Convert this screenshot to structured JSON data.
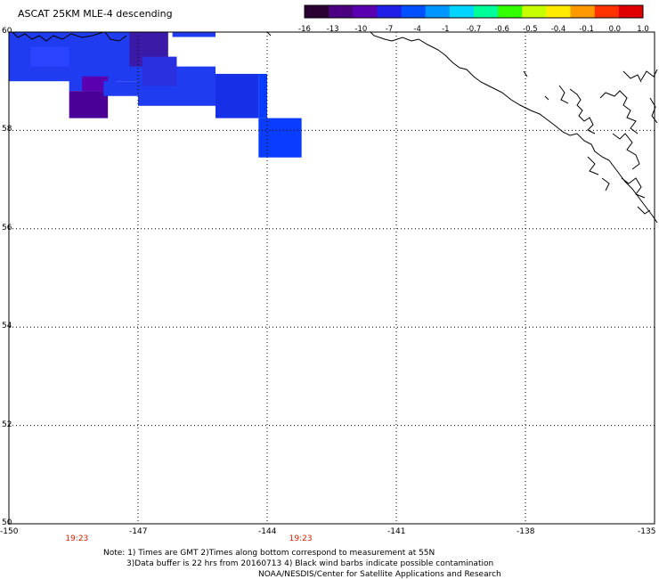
{
  "title": "ASCAT 25KM MLE-4 descending",
  "colorbar": {
    "labels": [
      "-16",
      "-13",
      "-10",
      "-7",
      "-4",
      "-1",
      "-0.7",
      "-0.6",
      "-0.5",
      "-0.4",
      "-0.1",
      "0.0",
      "1.0"
    ],
    "colors": [
      "#2a0033",
      "#4b0082",
      "#5a00b0",
      "#1f1fe8",
      "#0050ff",
      "#0096ff",
      "#00d4ff",
      "#00ff99",
      "#33ff00",
      "#c8ff00",
      "#ffea00",
      "#ff9900",
      "#ff3300",
      "#e00000"
    ]
  },
  "axes": {
    "x_labels": [
      "-150",
      "-147",
      "-144",
      "-141",
      "-138",
      "-135"
    ],
    "y_labels": [
      "60",
      "58",
      "56",
      "54",
      "52",
      "50"
    ],
    "xlim": [
      -150,
      -135
    ],
    "ylim": [
      50,
      60
    ]
  },
  "time_labels": [
    {
      "text": "19:23",
      "lon": -148.4
    },
    {
      "text": "19:23",
      "lon": -143.2
    }
  ],
  "notes": [
    "Note: 1) Times are GMT 2)Times along bottom correspond to measurement at 55N",
    "3)Data buffer is 22 hrs from 20160713 4) Black wind barbs indicate possible contamination",
    "NOAA/NESDIS/Center for Satellite Applications and Research"
  ],
  "data_cells": [
    {
      "lon": [
        -150.0,
        -146.9
      ],
      "lat": [
        59.0,
        60.0
      ],
      "color": "#1f3cf0"
    },
    {
      "lon": [
        -149.5,
        -148.6
      ],
      "lat": [
        59.3,
        59.7
      ],
      "color": "#2a44ff"
    },
    {
      "lon": [
        -148.6,
        -147.5
      ],
      "lat": [
        58.8,
        59.1
      ],
      "color": "#1f3cf0"
    },
    {
      "lon": [
        -148.6,
        -147.7
      ],
      "lat": [
        58.25,
        58.8
      ],
      "color": "#4a0096"
    },
    {
      "lon": [
        -148.3,
        -147.7
      ],
      "lat": [
        58.8,
        59.1
      ],
      "color": "#5a00b0"
    },
    {
      "lon": [
        -147.8,
        -147.0
      ],
      "lat": [
        58.7,
        59.0
      ],
      "color": "#1f3cf0"
    },
    {
      "lon": [
        -147.0,
        -145.2
      ],
      "lat": [
        58.5,
        59.3
      ],
      "color": "#1f3cf0"
    },
    {
      "lon": [
        -147.2,
        -146.3
      ],
      "lat": [
        59.3,
        60.0
      ],
      "color": "#3b1aa8"
    },
    {
      "lon": [
        -146.9,
        -146.1
      ],
      "lat": [
        58.9,
        59.5
      ],
      "color": "#2a30e0"
    },
    {
      "lon": [
        -145.2,
        -144.2
      ],
      "lat": [
        58.25,
        59.15
      ],
      "color": "#1530e6"
    },
    {
      "lon": [
        -144.2,
        -144.0
      ],
      "lat": [
        58.25,
        59.15
      ],
      "color": "#0a3cff"
    },
    {
      "lon": [
        -146.2,
        -145.2
      ],
      "lat": [
        59.9,
        60.0
      ],
      "color": "#1f3cf0"
    },
    {
      "lon": [
        -144.2,
        -143.2
      ],
      "lat": [
        57.45,
        58.25
      ],
      "color": "#0a3cff"
    }
  ],
  "map_features": "coastline-outline"
}
